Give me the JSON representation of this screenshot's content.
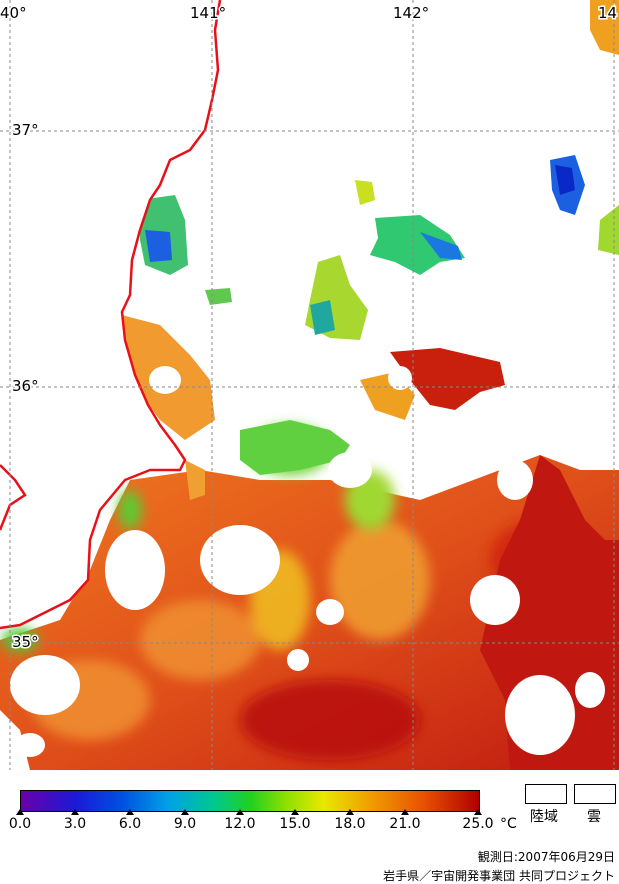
{
  "map": {
    "longitudes": [
      "40°",
      "141°",
      "142°",
      "14"
    ],
    "latitudes": [
      "37°",
      "36°",
      "35°"
    ]
  },
  "legend": {
    "ticks": [
      "0.0",
      "3.0",
      "6.0",
      "9.0",
      "12.0",
      "15.0",
      "18.0",
      "21.0",
      "25.0"
    ],
    "unit": "°C",
    "land_label": "陸域",
    "cloud_label": "雲"
  },
  "footer": {
    "observation_date": "観測日:2007年06月29日",
    "credit": "岩手県／宇宙開発事業団 共同プロジェクト"
  },
  "colors": {
    "coastline": "#e8101a",
    "warm_sea": "#d23a10",
    "cool_sea": "#1a5ad8"
  }
}
